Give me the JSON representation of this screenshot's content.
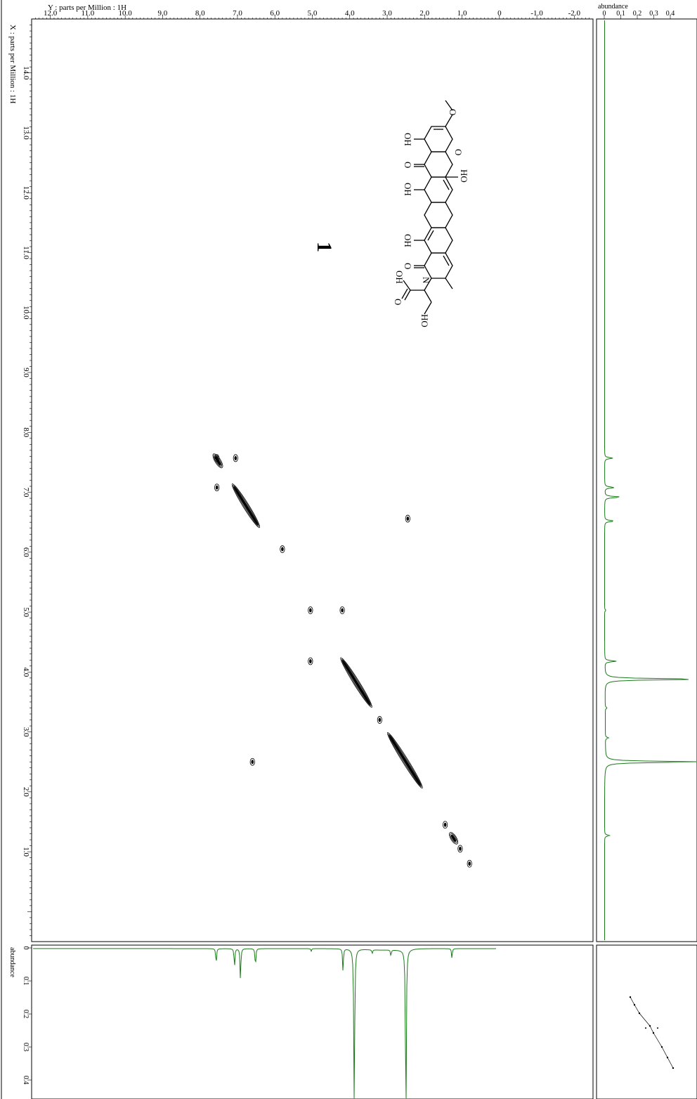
{
  "chart_data": {
    "type": "contour",
    "experiment": "2D 1H-1H correlation (COSY)",
    "top_axis": {
      "label": "Y : parts per Million : 1H",
      "range": [
        12.5,
        -2.5
      ],
      "ticks": [
        12.0,
        11.0,
        10.0,
        9.0,
        8.0,
        7.0,
        6.0,
        5.0,
        4.0,
        3.0,
        2.0,
        1.0,
        0,
        -1.0,
        -2.0
      ],
      "tick_labels": [
        "12.0",
        "11.0",
        "10.0",
        "9.0",
        "8.0",
        "7.0",
        "6.0",
        "5.0",
        "4.0",
        "3.0",
        "2.0",
        "1.0",
        "0",
        "-1.0",
        "-2.0"
      ]
    },
    "left_axis": {
      "label": "X : parts per Million : 1H",
      "range": [
        14.9,
        -0.5
      ],
      "ticks": [
        14.0,
        13.0,
        12.0,
        11.0,
        10.0,
        9.0,
        8.0,
        7.0,
        6.0,
        5.0,
        4.0,
        3.0,
        2.0,
        1.0
      ],
      "tick_labels": [
        "14.0",
        "13.0",
        "12.0",
        "11.0",
        "10.0",
        "9.0",
        "8.0",
        "7.0",
        "6.0",
        "5.0",
        "4.0",
        "3.0",
        "2.0",
        "1.0"
      ]
    },
    "right_projection": {
      "axis_label": "abundance",
      "range": [
        0,
        0.45
      ],
      "ticks": [
        0,
        0.1,
        0.2,
        0.3,
        0.4
      ],
      "tick_labels": [
        "0",
        "0.1",
        "0.2",
        "0.3",
        "0.4"
      ],
      "color": "#1a7a1a"
    },
    "bottom_projection": {
      "axis_label": "abundance",
      "range": [
        0,
        0.45
      ],
      "ticks": [
        0,
        0.1,
        0.2,
        0.3,
        0.4
      ],
      "tick_labels": [
        "0",
        "0.1",
        "0.2",
        "0.3",
        "0.4"
      ],
      "color": "#1a7a1a"
    },
    "peaks_1d": [
      {
        "ppm": 7.57,
        "abundance": 0.05
      },
      {
        "ppm": 7.08,
        "abundance": 0.06
      },
      {
        "ppm": 6.92,
        "abundance": 0.1
      },
      {
        "ppm": 6.52,
        "abundance": 0.06
      },
      {
        "ppm": 4.18,
        "abundance": 0.07
      },
      {
        "ppm": 3.88,
        "abundance": 0.6
      },
      {
        "ppm": 2.5,
        "abundance": 0.6
      },
      {
        "ppm": 1.27,
        "abundance": 0.03
      },
      {
        "ppm": 5.03,
        "abundance": 0.008
      },
      {
        "ppm": 2.9,
        "abundance": 0.02
      },
      {
        "ppm": 3.4,
        "abundance": 0.012
      }
    ],
    "diagonal_ranges": [
      {
        "from": 7.6,
        "to": 7.45
      },
      {
        "from": 7.1,
        "to": 6.45
      },
      {
        "from": 4.2,
        "to": 3.45
      },
      {
        "from": 2.95,
        "to": 2.1
      },
      {
        "from": 1.28,
        "to": 1.17
      }
    ],
    "cross_peaks": [
      {
        "f2": 7.55,
        "f1": 7.57
      },
      {
        "f2": 7.55,
        "f1": 7.08
      },
      {
        "f2": 7.05,
        "f1": 7.57
      },
      {
        "f2": 5.05,
        "f1": 5.03
      },
      {
        "f2": 5.05,
        "f1": 4.18
      },
      {
        "f2": 4.2,
        "f1": 5.03
      },
      {
        "f2": 6.6,
        "f1": 2.5
      },
      {
        "f2": 2.45,
        "f1": 6.56
      },
      {
        "f2": 5.8,
        "f1": 6.05
      },
      {
        "f2": 3.2,
        "f1": 3.2
      },
      {
        "f2": 1.45,
        "f1": 1.45
      },
      {
        "f2": 1.05,
        "f1": 1.05
      },
      {
        "f2": 0.8,
        "f1": 0.8
      }
    ]
  },
  "structure": {
    "compound_number": "1",
    "atom_labels": {
      "ho": "HO",
      "oh": "OH",
      "o": "O",
      "n": "N"
    }
  }
}
